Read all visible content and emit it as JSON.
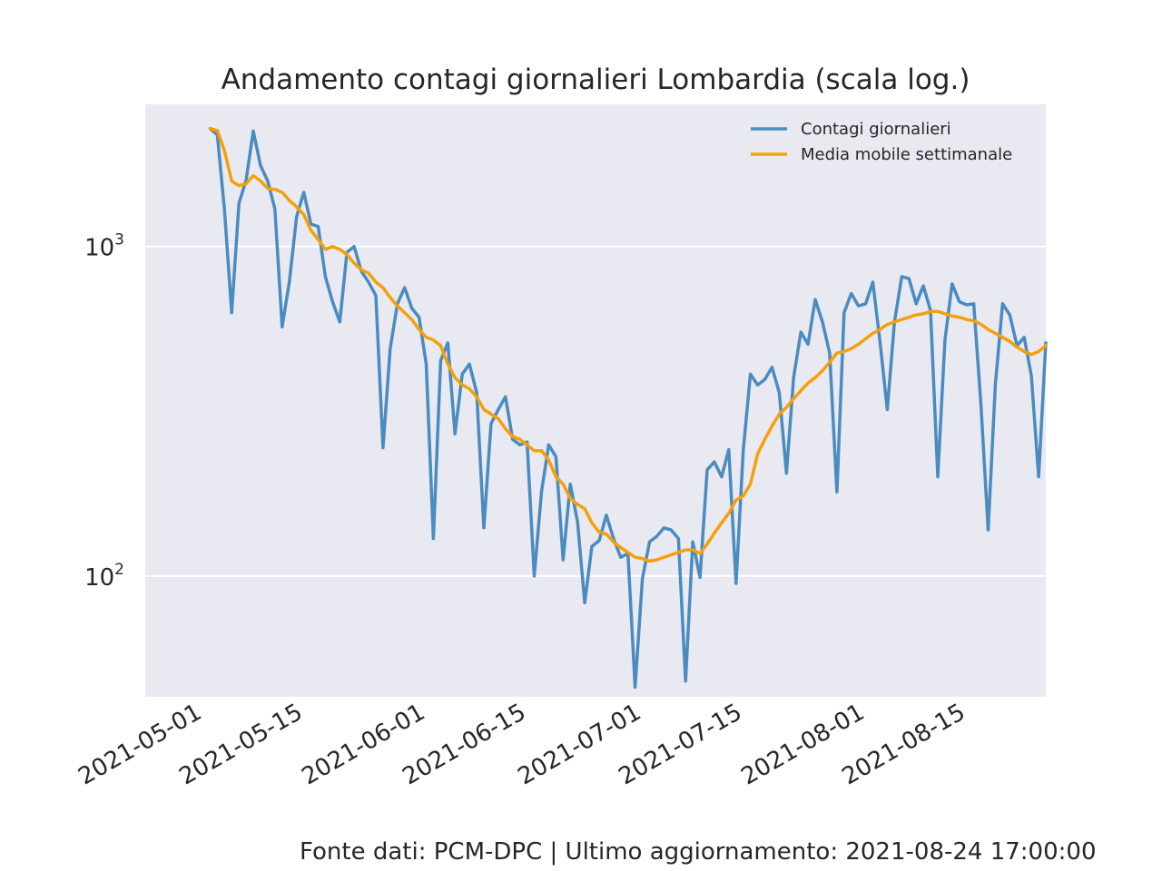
{
  "footer": "Fonte dati: PCM-DPC | Ultimo aggiornamento: 2021-08-24 17:00:00",
  "chart_data": {
    "type": "line",
    "title": "Andamento contagi giornalieri Lombardia (scala log.)",
    "xlabel": "",
    "ylabel": "",
    "y_scale": "log",
    "ylim": [
      43,
      2700
    ],
    "xlim": [
      "2021-04-28",
      "2021-08-31"
    ],
    "grid": true,
    "legend_position": "top-right",
    "x_start": "2021-05-07",
    "x_ticks": [
      "2021-05-01",
      "2021-05-15",
      "2021-06-01",
      "2021-06-15",
      "2021-07-01",
      "2021-07-15",
      "2021-08-01",
      "2021-08-15"
    ],
    "y_ticks": [
      {
        "value": 100,
        "base": "10",
        "exp": "2"
      },
      {
        "value": 1000,
        "base": "10",
        "exp": "3"
      }
    ],
    "series": [
      {
        "name": "Contagi giornalieri",
        "color": "#4a8cc0",
        "values": [
          2280,
          2180,
          1290,
          630,
          1350,
          1590,
          2240,
          1760,
          1580,
          1300,
          570,
          780,
          1230,
          1460,
          1170,
          1150,
          810,
          680,
          590,
          960,
          1000,
          840,
          780,
          710,
          245,
          490,
          670,
          750,
          650,
          610,
          440,
          130,
          450,
          510,
          270,
          410,
          440,
          360,
          140,
          290,
          320,
          350,
          260,
          250,
          255,
          100,
          180,
          250,
          230,
          112,
          190,
          146,
          83,
          123,
          128,
          153,
          130,
          114,
          117,
          46,
          98,
          127,
          132,
          140,
          138,
          130,
          48,
          127,
          99,
          210,
          222,
          200,
          242,
          95,
          240,
          410,
          380,
          395,
          430,
          360,
          205,
          400,
          550,
          505,
          690,
          590,
          475,
          180,
          630,
          720,
          660,
          670,
          780,
          510,
          320,
          590,
          810,
          800,
          670,
          760,
          640,
          200,
          520,
          770,
          680,
          665,
          670,
          330,
          138,
          380,
          670,
          620,
          500,
          530,
          405,
          200,
          510
        ]
      },
      {
        "name": "Media mobile settimanale",
        "color": "#f5a00a",
        "values": [
          2280,
          2250,
          1950,
          1580,
          1530,
          1550,
          1640,
          1580,
          1500,
          1490,
          1460,
          1380,
          1320,
          1250,
          1120,
          1050,
          980,
          1000,
          980,
          945,
          890,
          850,
          830,
          780,
          750,
          700,
          660,
          630,
          600,
          560,
          530,
          520,
          500,
          440,
          400,
          380,
          370,
          350,
          320,
          310,
          300,
          280,
          265,
          260,
          250,
          240,
          240,
          225,
          200,
          190,
          172,
          165,
          160,
          145,
          136,
          134,
          127,
          122,
          118,
          114,
          113,
          111,
          112,
          114,
          116,
          118,
          120,
          120,
          117,
          125,
          135,
          145,
          155,
          170,
          175,
          190,
          235,
          260,
          285,
          310,
          325,
          345,
          365,
          385,
          400,
          420,
          445,
          475,
          480,
          490,
          505,
          525,
          545,
          560,
          580,
          590,
          600,
          610,
          620,
          625,
          635,
          635,
          625,
          615,
          610,
          600,
          595,
          580,
          560,
          545,
          530,
          515,
          495,
          480,
          470,
          480,
          500
        ]
      }
    ]
  }
}
